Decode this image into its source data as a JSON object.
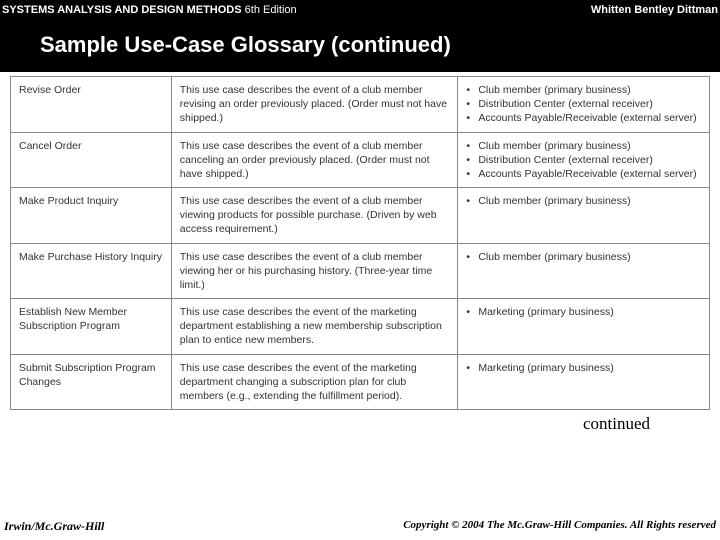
{
  "header": {
    "book_title": "SYSTEMS ANALYSIS AND DESIGN METHODS",
    "edition": "6th Edition",
    "authors": "Whitten   Bentley   Dittman",
    "slide_title": "Sample Use-Case Glossary (continued)"
  },
  "table": {
    "col_widths": [
      "23%",
      "41%",
      "36%"
    ],
    "rows": [
      {
        "name": "Revise Order",
        "description": "This use case describes the event of a club member revising an order previously placed. (Order must not have shipped.)",
        "actors": [
          "Club member (primary business)",
          "Distribution Center (external receiver)",
          "Accounts Payable/Receivable (external server)"
        ]
      },
      {
        "name": "Cancel Order",
        "description": "This use case describes the event of a club member canceling an order previously placed. (Order must not have shipped.)",
        "actors": [
          "Club member (primary business)",
          "Distribution Center (external receiver)",
          "Accounts Payable/Receivable (external server)"
        ]
      },
      {
        "name": "Make Product Inquiry",
        "description": "This use case describes the event of a club member viewing products for possible purchase. (Driven by web access requirement.)",
        "actors": [
          "Club member (primary business)"
        ]
      },
      {
        "name": "Make Purchase History Inquiry",
        "description": "This use case describes the event of a club member viewing her or his purchasing history. (Three-year time limit.)",
        "actors": [
          "Club member (primary business)"
        ]
      },
      {
        "name": "Establish New Member Subscription Program",
        "description": "This use case describes the event of the marketing department establishing a new membership subscription plan to entice new members.",
        "actors": [
          "Marketing (primary business)"
        ]
      },
      {
        "name": "Submit Subscription Program Changes",
        "description": "This use case describes the event of the marketing department changing a subscription plan for club members (e.g., extending the fulfillment period).",
        "actors": [
          "Marketing (primary business)"
        ]
      }
    ]
  },
  "continued_label": "continued",
  "footer": {
    "left": "Irwin/Mc.Graw-Hill",
    "right": "Copyright © 2004 The Mc.Graw-Hill Companies. All Rights reserved"
  }
}
